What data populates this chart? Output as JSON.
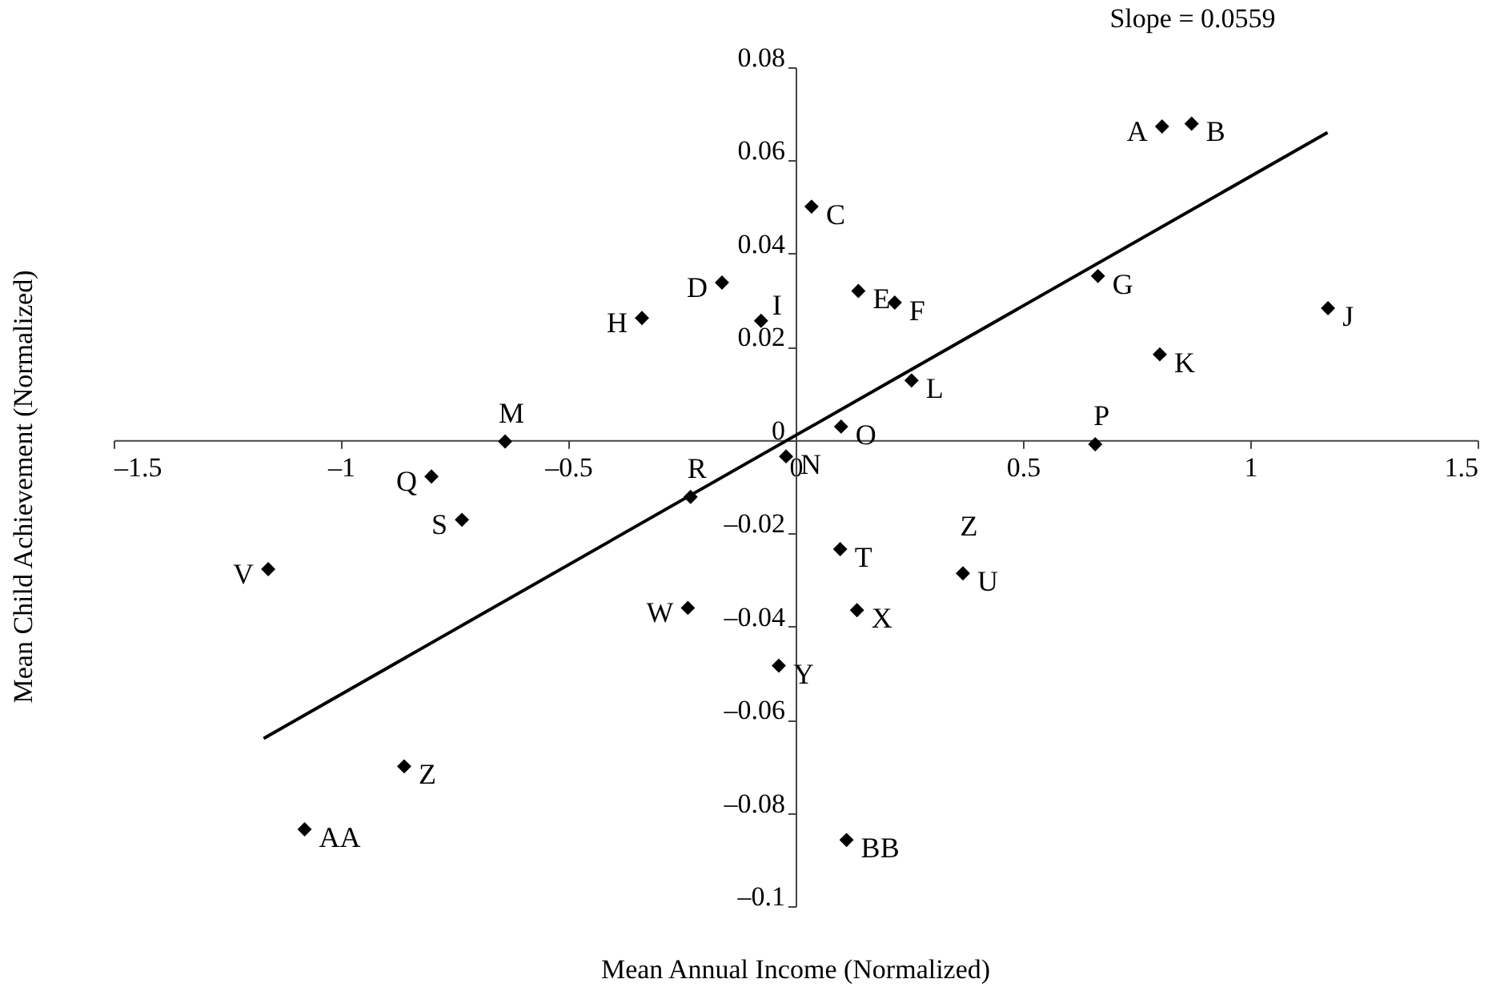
{
  "chart_data": {
    "type": "scatter",
    "title": "Slope = 0.0559",
    "xlabel": "Mean Annual Income (Normalized)",
    "ylabel": "Mean Child Achievement (Normalized)",
    "xlim": [
      -1.5,
      1.5
    ],
    "ylim": [
      -0.1,
      0.08
    ],
    "xticks": [
      {
        "value": -1.5,
        "label": "–1.5"
      },
      {
        "value": -1,
        "label": "–1"
      },
      {
        "value": -0.5,
        "label": "–0.5"
      },
      0,
      0.5,
      1,
      1.5
    ],
    "yticks": [
      {
        "value": -0.1,
        "label": "–0.1"
      },
      {
        "value": -0.08,
        "label": "–0.08"
      },
      {
        "value": -0.06,
        "label": "–0.06"
      },
      {
        "value": -0.04,
        "label": "–0.04"
      },
      {
        "value": -0.02,
        "label": "–0.02"
      },
      0,
      0.02,
      0.04,
      0.06,
      0.08
    ],
    "grid": false,
    "marker": "diamond",
    "series": [
      {
        "color": "#000000",
        "x": [
          0.806,
          0.871,
          0.035,
          -0.162,
          0.138,
          0.218,
          0.665,
          -0.338,
          -0.076,
          1.171,
          0.801,
          0.255,
          -0.639,
          -0.021,
          0.1,
          0.659,
          -0.801,
          -0.231,
          -0.734,
          0.098,
          0.368,
          -1.16,
          -0.237,
          0.135,
          -0.037,
          -0.861,
          -1.08,
          0.112
        ],
        "values": [
          0.0673,
          0.0679,
          0.0501,
          0.0338,
          0.032,
          0.0295,
          0.0352,
          0.0262,
          0.0256,
          0.0283,
          0.0184,
          0.0128,
          -0.0003,
          -0.0035,
          0.0029,
          -0.0009,
          -0.0078,
          -0.0122,
          -0.0171,
          -0.0234,
          -0.0286,
          -0.0277,
          -0.036,
          -0.0365,
          -0.0484,
          -0.07,
          -0.0835,
          -0.0858
        ]
      },
      {
        "type": "line",
        "color": "#000000",
        "marker": "none",
        "line_style": "solid",
        "x": [
          -1.17,
          1.17
        ],
        "values": [
          -0.064,
          0.066
        ]
      }
    ],
    "annotations": [
      {
        "text": "A",
        "x": 0.806,
        "y": 0.0673
      },
      {
        "text": "B",
        "x": 0.871,
        "y": 0.0679
      },
      {
        "text": "C",
        "x": 0.035,
        "y": 0.0501
      },
      {
        "text": "D",
        "x": -0.162,
        "y": 0.0338
      },
      {
        "text": "E",
        "x": 0.138,
        "y": 0.032
      },
      {
        "text": "F",
        "x": 0.218,
        "y": 0.0295
      },
      {
        "text": "G",
        "x": 0.665,
        "y": 0.0352
      },
      {
        "text": "H",
        "x": -0.338,
        "y": 0.0262
      },
      {
        "text": "I",
        "x": -0.076,
        "y": 0.0256
      },
      {
        "text": "J",
        "x": 1.171,
        "y": 0.0283
      },
      {
        "text": "K",
        "x": 0.801,
        "y": 0.0184
      },
      {
        "text": "L",
        "x": 0.255,
        "y": 0.0128
      },
      {
        "text": "M",
        "x": -0.639,
        "y": -0.0003
      },
      {
        "text": "N",
        "x": -0.021,
        "y": -0.0035
      },
      {
        "text": "O",
        "x": 0.1,
        "y": 0.0029
      },
      {
        "text": "P",
        "x": 0.659,
        "y": -0.0009
      },
      {
        "text": "Q",
        "x": -0.801,
        "y": -0.0078
      },
      {
        "text": "R",
        "x": -0.231,
        "y": -0.0122
      },
      {
        "text": "S",
        "x": -0.734,
        "y": -0.0171
      },
      {
        "text": "T",
        "x": 0.098,
        "y": -0.0234
      },
      {
        "text": "U",
        "x": 0.368,
        "y": -0.0286
      },
      {
        "text": "V",
        "x": -1.16,
        "y": -0.0277
      },
      {
        "text": "W",
        "x": -0.237,
        "y": -0.036
      },
      {
        "text": "X",
        "x": 0.135,
        "y": -0.0365
      },
      {
        "text": "Y",
        "x": -0.037,
        "y": -0.0484
      },
      {
        "text": "Z",
        "x": -0.861,
        "y": -0.07
      },
      {
        "text": "AA",
        "x": -1.08,
        "y": -0.0835
      },
      {
        "text": "BB",
        "x": 0.112,
        "y": -0.0858
      },
      "Z"
    ]
  }
}
